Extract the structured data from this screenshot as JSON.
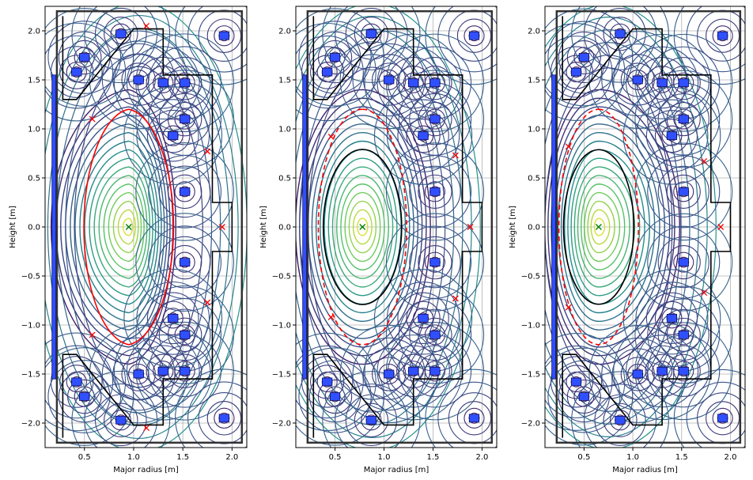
{
  "chart_data": [
    {
      "type": "contour",
      "xlabel": "Major radius [m]",
      "ylabel": "Height [m]",
      "xlim": [
        0.1,
        2.15
      ],
      "ylim": [
        -2.25,
        2.25
      ],
      "xticks": [
        0.5,
        1.0,
        1.5,
        2.0
      ],
      "yticks": [
        -2.0,
        -1.5,
        -1.0,
        -0.5,
        0.0,
        0.5,
        1.0,
        1.5,
        2.0
      ],
      "xtick_labels": [
        "0.5",
        "1.0",
        "1.5",
        "2.0"
      ],
      "ytick_labels": [
        "−2.0",
        "−1.5",
        "−1.0",
        "−0.5",
        "0.0",
        "0.5",
        "1.0",
        "1.5",
        "2.0"
      ],
      "grid": true,
      "o_point": {
        "r": 0.95,
        "z": 0.0
      },
      "x_points": [
        {
          "r": 0.58,
          "z": 1.1
        },
        {
          "r": 0.58,
          "z": -1.1
        },
        {
          "r": 1.13,
          "z": 2.05
        },
        {
          "r": 1.13,
          "z": -2.05
        },
        {
          "r": 1.75,
          "z": 0.77
        },
        {
          "r": 1.75,
          "z": -0.77
        },
        {
          "r": 1.9,
          "z": 0.0
        }
      ],
      "separatrix_style": "solid",
      "separatrix_halfwidth": 0.55,
      "boundary_outline": false
    },
    {
      "type": "contour",
      "xlabel": "Major radius [m]",
      "ylabel": "Height [m]",
      "xlim": [
        0.1,
        2.15
      ],
      "ylim": [
        -2.25,
        2.25
      ],
      "xticks": [
        0.5,
        1.0,
        1.5,
        2.0
      ],
      "yticks": [
        -2.0,
        -1.5,
        -1.0,
        -0.5,
        0.0,
        0.5,
        1.0,
        1.5,
        2.0
      ],
      "xtick_labels": [
        "0.5",
        "1.0",
        "1.5",
        "2.0"
      ],
      "ytick_labels": [
        "−2.0",
        "−1.5",
        "−1.0",
        "−0.5",
        "0.0",
        "0.5",
        "1.0",
        "1.5",
        "2.0"
      ],
      "grid": true,
      "o_point": {
        "r": 0.78,
        "z": 0.0
      },
      "x_points": [
        {
          "r": 0.46,
          "z": 0.92
        },
        {
          "r": 0.46,
          "z": -0.92
        },
        {
          "r": 1.73,
          "z": 0.73
        },
        {
          "r": 1.73,
          "z": -0.73
        },
        {
          "r": 1.88,
          "z": 0.0
        }
      ],
      "separatrix_style": "dashed",
      "separatrix_halfwidth": 0.5,
      "boundary_outline": true
    },
    {
      "type": "contour",
      "xlabel": "Major radius [m]",
      "ylabel": "Height [m]",
      "xlim": [
        0.1,
        2.15
      ],
      "ylim": [
        -2.25,
        2.25
      ],
      "xticks": [
        0.5,
        1.0,
        1.5,
        2.0
      ],
      "yticks": [
        -2.0,
        -1.5,
        -1.0,
        -0.5,
        0.0,
        0.5,
        1.0,
        1.5,
        2.0
      ],
      "xtick_labels": [
        "0.5",
        "1.0",
        "1.5",
        "2.0"
      ],
      "ytick_labels": [
        "−2.0",
        "−1.5",
        "−1.0",
        "−0.5",
        "0.0",
        "0.5",
        "1.0",
        "1.5",
        "2.0"
      ],
      "grid": true,
      "o_point": {
        "r": 0.65,
        "z": 0.0
      },
      "x_points": [
        {
          "r": 0.34,
          "z": 0.82
        },
        {
          "r": 0.34,
          "z": -0.82
        },
        {
          "r": 1.73,
          "z": 0.67
        },
        {
          "r": 1.73,
          "z": -0.67
        },
        {
          "r": 1.9,
          "z": 0.0
        }
      ],
      "separatrix_style": "dashed",
      "separatrix_halfwidth": 0.45,
      "boundary_outline": true
    }
  ],
  "machine": {
    "colors": {
      "separatrix": "#ff0000",
      "wall": "#000000",
      "coil_fill": "#3050ff",
      "coil_edge": "#101060",
      "o_point": "#008000",
      "x_point": "#ff0000",
      "contour_palette": [
        "#440154",
        "#3b528b",
        "#21918c",
        "#5ec962",
        "#fde725"
      ]
    },
    "coils": [
      {
        "r": 0.42,
        "z": 1.58
      },
      {
        "r": 0.42,
        "z": -1.58
      },
      {
        "r": 0.5,
        "z": 1.73
      },
      {
        "r": 0.5,
        "z": -1.73
      },
      {
        "r": 0.87,
        "z": 1.97
      },
      {
        "r": 0.87,
        "z": -1.97
      },
      {
        "r": 1.52,
        "z": 1.1
      },
      {
        "r": 1.52,
        "z": -1.1
      },
      {
        "r": 1.52,
        "z": 0.36
      },
      {
        "r": 1.52,
        "z": -0.36
      },
      {
        "r": 1.05,
        "z": 1.5
      },
      {
        "r": 1.05,
        "z": -1.5
      },
      {
        "r": 1.3,
        "z": 1.47
      },
      {
        "r": 1.3,
        "z": -1.47
      },
      {
        "r": 1.52,
        "z": 1.47
      },
      {
        "r": 1.52,
        "z": -1.47
      },
      {
        "r": 1.4,
        "z": 0.93
      },
      {
        "r": 1.4,
        "z": -0.93
      },
      {
        "r": 1.92,
        "z": 1.95
      },
      {
        "r": 1.92,
        "z": -1.95
      }
    ],
    "solenoid": {
      "r": 0.19,
      "z_min": -1.55,
      "z_max": 1.55
    }
  }
}
